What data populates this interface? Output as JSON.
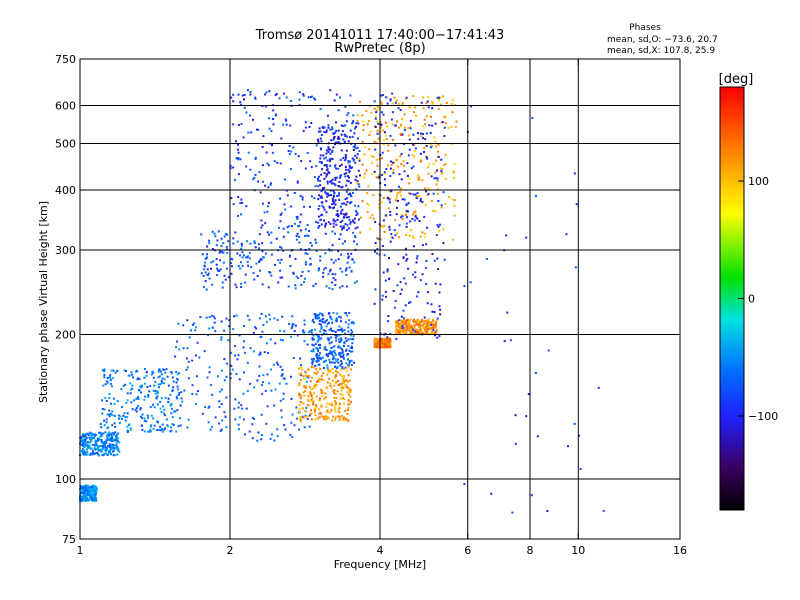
{
  "chart_data": {
    "type": "scatter",
    "title": "Tromsø 20141011 17:40:00−17:41:43",
    "subtitle": "RwPretec (8p)",
    "phase_box": {
      "title": "Phases",
      "line1": "mean, sd,O: −73.6, 20.7",
      "line2": "mean, sd,X: 107.8, 25.9"
    },
    "xlabel": "Frequency [MHz]",
    "ylabel": "Stationary phase Virtual Height [km]",
    "x_scale": "log",
    "y_scale": "log",
    "xlim": [
      1,
      16
    ],
    "ylim": [
      75,
      750
    ],
    "x_ticks": [
      1,
      2,
      4,
      6,
      8,
      10,
      16
    ],
    "x_tick_labels": [
      "1",
      "2",
      "4",
      "6",
      "8",
      "10",
      "16"
    ],
    "x_gridlines": [
      2,
      4,
      6,
      8,
      10
    ],
    "y_ticks": [
      75,
      100,
      200,
      300,
      400,
      500,
      600,
      750
    ],
    "y_tick_labels": [
      "75",
      "100",
      "200",
      "300",
      "400",
      "500",
      "600",
      "750"
    ],
    "y_gridlines": [
      100,
      200,
      300,
      400,
      500,
      600
    ],
    "grid": true,
    "colorbar": {
      "label": "[deg]",
      "range": [
        -180,
        180
      ],
      "ticks": [
        -100,
        0,
        100
      ],
      "tick_labels": [
        "−100",
        "0",
        "100"
      ],
      "colormap": "rainbow (black-purple-blue-cyan-green-yellow-red)"
    },
    "series": [
      {
        "x_range": [
          1.0,
          1.08
        ],
        "y_range": [
          90,
          97
        ],
        "phase_deg": -50
      },
      {
        "x_range": [
          1.0,
          1.2
        ],
        "y_range": [
          112,
          125
        ],
        "phase_deg": -55
      },
      {
        "x_range": [
          1.1,
          1.6
        ],
        "y_range": [
          125,
          170
        ],
        "phase_deg": -60
      },
      {
        "x_range": [
          1.55,
          2.9
        ],
        "y_range": [
          120,
          222
        ],
        "phase_deg": -70
      },
      {
        "x_range": [
          2.9,
          3.55
        ],
        "y_range": [
          170,
          222
        ],
        "phase_deg": -70
      },
      {
        "x_range": [
          2.75,
          3.5
        ],
        "y_range": [
          132,
          172
        ],
        "phase_deg": 115
      },
      {
        "x_range": [
          1.75,
          3.6
        ],
        "y_range": [
          248,
          330
        ],
        "phase_deg": -80
      },
      {
        "x_range": [
          2.0,
          3.6
        ],
        "y_range": [
          330,
          650
        ],
        "phase_deg": -85
      },
      {
        "x_range": [
          3.0,
          3.65
        ],
        "y_range": [
          330,
          560
        ],
        "phase_deg": -100
      },
      {
        "x_range": [
          3.6,
          5.7
        ],
        "y_range": [
          315,
          630
        ],
        "phase_deg": 110
      },
      {
        "x_range": [
          3.9,
          4.2
        ],
        "y_range": [
          188,
          196
        ],
        "phase_deg": 130
      },
      {
        "x_range": [
          4.3,
          5.2
        ],
        "y_range": [
          200,
          215
        ],
        "phase_deg": 120
      },
      {
        "x_range": [
          3.9,
          5.4
        ],
        "y_range": [
          195,
          640
        ],
        "phase_deg": -100
      },
      {
        "x_range": [
          5.8,
          11.3
        ],
        "y_range": [
          85,
          630
        ],
        "phase_deg": -95
      }
    ]
  }
}
